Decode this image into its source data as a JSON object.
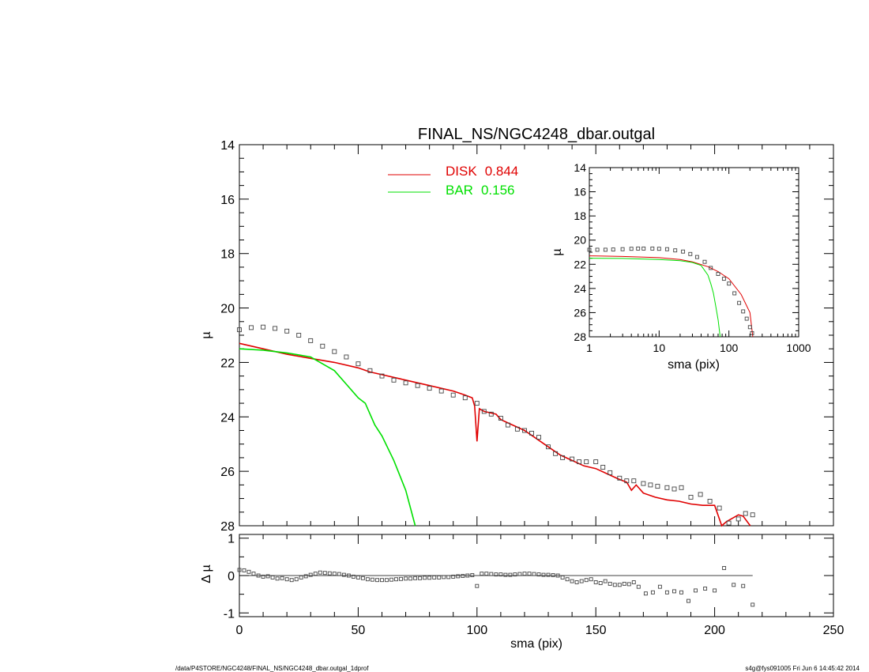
{
  "colors": {
    "disk": "#e00000",
    "bar": "#00e000",
    "data": "#444444",
    "axis": "#000000"
  },
  "footer": {
    "left": "/data/P4STORE/NGC4248/FINAL_NS/NGC4248_dbar.outgal_1dprof",
    "right": "s4g@fys091005  Fri Jun  6 14:45:42 2014"
  },
  "chart_data": [
    {
      "id": "main",
      "type": "line",
      "title": "FINAL_NS/NGC4248_dbar.outgal",
      "xlabel": "",
      "ylabel": "µ",
      "xlim": [
        0,
        250
      ],
      "ylim": [
        28,
        14
      ],
      "yticks": [
        14,
        16,
        18,
        20,
        22,
        24,
        26,
        28
      ],
      "legend": {
        "placement": "top-center",
        "entries": [
          {
            "label": "DISK",
            "value": "0.844",
            "color": "#e00000"
          },
          {
            "label": "BAR",
            "value": "0.156",
            "color": "#00e000"
          }
        ]
      },
      "series": [
        {
          "name": "DISK",
          "style": "line",
          "x": [
            0,
            10,
            20,
            30,
            40,
            50,
            55,
            60,
            70,
            80,
            90,
            95,
            98,
            99,
            100,
            101,
            103,
            108,
            110,
            115,
            120,
            125,
            130,
            135,
            140,
            145,
            150,
            155,
            160,
            163,
            165,
            167,
            170,
            175,
            180,
            185,
            190,
            195,
            200,
            203,
            205,
            210,
            212,
            215
          ],
          "y": [
            21.3,
            21.5,
            21.7,
            21.85,
            22.0,
            22.2,
            22.35,
            22.45,
            22.65,
            22.85,
            23.05,
            23.2,
            23.3,
            23.6,
            24.9,
            23.7,
            23.8,
            23.9,
            24.1,
            24.3,
            24.5,
            24.8,
            25.1,
            25.4,
            25.6,
            25.8,
            25.9,
            26.1,
            26.3,
            26.4,
            26.7,
            26.5,
            26.8,
            26.95,
            27.05,
            27.1,
            27.2,
            27.25,
            27.25,
            28.0,
            27.85,
            27.6,
            27.65,
            28.0
          ]
        },
        {
          "name": "BAR",
          "style": "line",
          "x": [
            0,
            10,
            20,
            30,
            35,
            40,
            45,
            50,
            53,
            55,
            57,
            60,
            65,
            70,
            74
          ],
          "y": [
            21.5,
            21.55,
            21.65,
            21.8,
            22.05,
            22.3,
            22.8,
            23.3,
            23.5,
            23.9,
            24.3,
            24.7,
            25.6,
            26.7,
            28.0
          ]
        },
        {
          "name": "data",
          "style": "markers",
          "x": [
            0,
            5,
            10,
            15,
            20,
            25,
            30,
            35,
            40,
            45,
            50,
            55,
            60,
            65,
            70,
            75,
            80,
            85,
            90,
            95,
            100,
            103,
            106,
            110,
            113,
            117,
            120,
            123,
            126,
            130,
            133,
            136,
            140,
            143,
            146,
            150,
            153,
            156,
            160,
            163,
            166,
            170,
            173,
            176,
            180,
            183,
            186,
            190,
            194,
            198,
            202,
            206,
            210,
            213,
            216
          ],
          "y": [
            20.8,
            20.72,
            20.7,
            20.75,
            20.85,
            21.0,
            21.2,
            21.4,
            21.6,
            21.8,
            22.05,
            22.3,
            22.5,
            22.65,
            22.75,
            22.85,
            22.95,
            23.05,
            23.2,
            23.3,
            23.5,
            23.8,
            23.9,
            24.05,
            24.3,
            24.45,
            24.5,
            24.6,
            24.75,
            25.1,
            25.35,
            25.5,
            25.55,
            25.65,
            25.65,
            25.65,
            25.85,
            26.05,
            26.25,
            26.35,
            26.35,
            26.45,
            26.5,
            26.55,
            26.6,
            26.65,
            26.6,
            26.95,
            26.85,
            27.1,
            27.35,
            27.9,
            27.75,
            27.55,
            27.6
          ]
        }
      ]
    },
    {
      "id": "inset",
      "type": "line",
      "xlabel": "sma (pix)",
      "ylabel": "µ",
      "xscale": "log",
      "xlim": [
        1,
        1000
      ],
      "ylim": [
        28,
        14
      ],
      "xticks": [
        1,
        10,
        100,
        1000
      ],
      "yticks": [
        14,
        16,
        18,
        20,
        22,
        24,
        26,
        28
      ],
      "series": [
        {
          "name": "DISK",
          "style": "line",
          "x": [
            1,
            3,
            10,
            20,
            30,
            50,
            70,
            100,
            150,
            200,
            220
          ],
          "y": [
            21.3,
            21.35,
            21.45,
            21.6,
            21.8,
            22.2,
            22.6,
            23.2,
            24.5,
            26.0,
            28.0
          ]
        },
        {
          "name": "BAR",
          "style": "line",
          "x": [
            1,
            3,
            10,
            20,
            30,
            40,
            50,
            55,
            60,
            65,
            70,
            75
          ],
          "y": [
            21.5,
            21.52,
            21.6,
            21.7,
            21.85,
            22.1,
            22.9,
            23.6,
            24.4,
            25.5,
            26.6,
            28.0
          ]
        },
        {
          "name": "data",
          "style": "markers",
          "x": [
            1,
            1.3,
            1.7,
            2.2,
            3,
            4,
            5,
            6,
            8,
            10,
            13,
            17,
            22,
            28,
            35,
            45,
            55,
            70,
            85,
            100,
            120,
            140,
            160,
            180,
            200,
            215
          ],
          "y": [
            20.8,
            20.8,
            20.8,
            20.78,
            20.75,
            20.72,
            20.7,
            20.7,
            20.7,
            20.72,
            20.75,
            20.85,
            20.95,
            21.15,
            21.4,
            21.8,
            22.3,
            22.8,
            23.2,
            23.6,
            24.4,
            25.2,
            25.9,
            26.5,
            27.2,
            27.7
          ]
        }
      ]
    },
    {
      "id": "residuals",
      "type": "scatter",
      "xlabel": "sma (pix)",
      "ylabel": "Δ µ",
      "xlim": [
        0,
        250
      ],
      "ylim": [
        -1.1,
        1.1
      ],
      "xticks": [
        0,
        50,
        100,
        150,
        200,
        250
      ],
      "yticks": [
        -1,
        0,
        1
      ],
      "zero_line": {
        "x": [
          0,
          216
        ]
      },
      "series": [
        {
          "name": "data",
          "style": "markers",
          "x": [
            0,
            2,
            4,
            6,
            8,
            10,
            12,
            14,
            16,
            18,
            20,
            22,
            24,
            26,
            28,
            30,
            32,
            34,
            36,
            38,
            40,
            42,
            44,
            46,
            48,
            50,
            52,
            54,
            56,
            58,
            60,
            62,
            64,
            66,
            68,
            70,
            72,
            74,
            76,
            78,
            80,
            82,
            84,
            86,
            88,
            90,
            92,
            94,
            96,
            98,
            100,
            102,
            104,
            106,
            108,
            110,
            112,
            114,
            116,
            118,
            120,
            122,
            124,
            126,
            128,
            130,
            132,
            134,
            136,
            138,
            140,
            142,
            144,
            146,
            148,
            150,
            152,
            154,
            156,
            158,
            160,
            162,
            164,
            166,
            168,
            171,
            174,
            177,
            180,
            183,
            186,
            189,
            192,
            196,
            200,
            204,
            208,
            212,
            216
          ],
          "y": [
            0.15,
            0.14,
            0.1,
            0.05,
            0.0,
            -0.03,
            -0.02,
            -0.05,
            -0.08,
            -0.07,
            -0.1,
            -0.12,
            -0.1,
            -0.05,
            -0.02,
            0.02,
            0.05,
            0.08,
            0.07,
            0.06,
            0.05,
            0.04,
            0.02,
            0.0,
            -0.03,
            -0.05,
            -0.07,
            -0.1,
            -0.11,
            -0.12,
            -0.12,
            -0.12,
            -0.11,
            -0.1,
            -0.09,
            -0.08,
            -0.08,
            -0.07,
            -0.07,
            -0.06,
            -0.06,
            -0.05,
            -0.05,
            -0.04,
            -0.04,
            -0.03,
            -0.02,
            -0.01,
            0.0,
            0.01,
            -0.28,
            0.05,
            0.05,
            0.04,
            0.03,
            0.03,
            0.02,
            0.02,
            0.03,
            0.04,
            0.05,
            0.05,
            0.04,
            0.03,
            0.02,
            0.02,
            0.01,
            0.0,
            -0.05,
            -0.1,
            -0.15,
            -0.18,
            -0.15,
            -0.12,
            -0.1,
            -0.18,
            -0.2,
            -0.15,
            -0.22,
            -0.25,
            -0.25,
            -0.22,
            -0.23,
            -0.18,
            -0.3,
            -0.48,
            -0.45,
            -0.3,
            -0.45,
            -0.42,
            -0.45,
            -0.68,
            -0.4,
            -0.35,
            -0.4,
            0.2,
            -0.25,
            -0.28,
            -0.78
          ]
        }
      ]
    }
  ]
}
